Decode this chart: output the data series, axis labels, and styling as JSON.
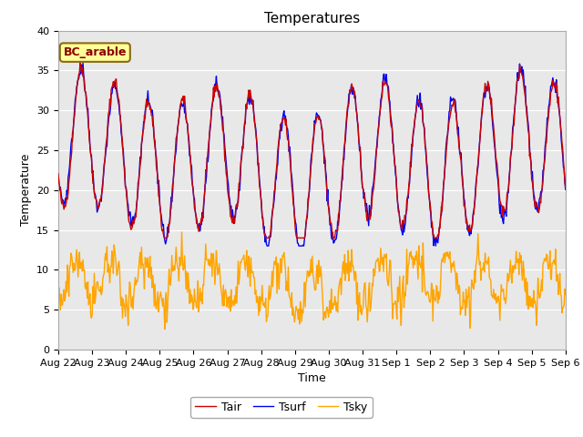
{
  "title": "Temperatures",
  "xlabel": "Time",
  "ylabel": "Temperature",
  "annotation": "BC_arable",
  "ylim": [
    0,
    40
  ],
  "xtick_labels": [
    "Aug 22",
    "Aug 23",
    "Aug 24",
    "Aug 25",
    "Aug 26",
    "Aug 27",
    "Aug 28",
    "Aug 29",
    "Aug 30",
    "Aug 31",
    "Sep 1",
    "Sep 2",
    "Sep 3",
    "Sep 4",
    "Sep 5",
    "Sep 6"
  ],
  "tair_color": "#CC0000",
  "tsurf_color": "#0000EE",
  "tsky_color": "#FFA500",
  "plot_bg_color": "#E8E8E8",
  "fig_bg_color": "#FFFFFF",
  "legend_labels": [
    "Tair",
    "Tsurf",
    "Tsky"
  ],
  "title_fontsize": 11,
  "axis_label_fontsize": 9,
  "tick_fontsize": 8,
  "annotation_fontsize": 9,
  "annotation_color": "#8B0000",
  "annotation_bg": "#FFFF99",
  "annotation_border": "#8B6914",
  "seed": 42,
  "n_days": 15
}
